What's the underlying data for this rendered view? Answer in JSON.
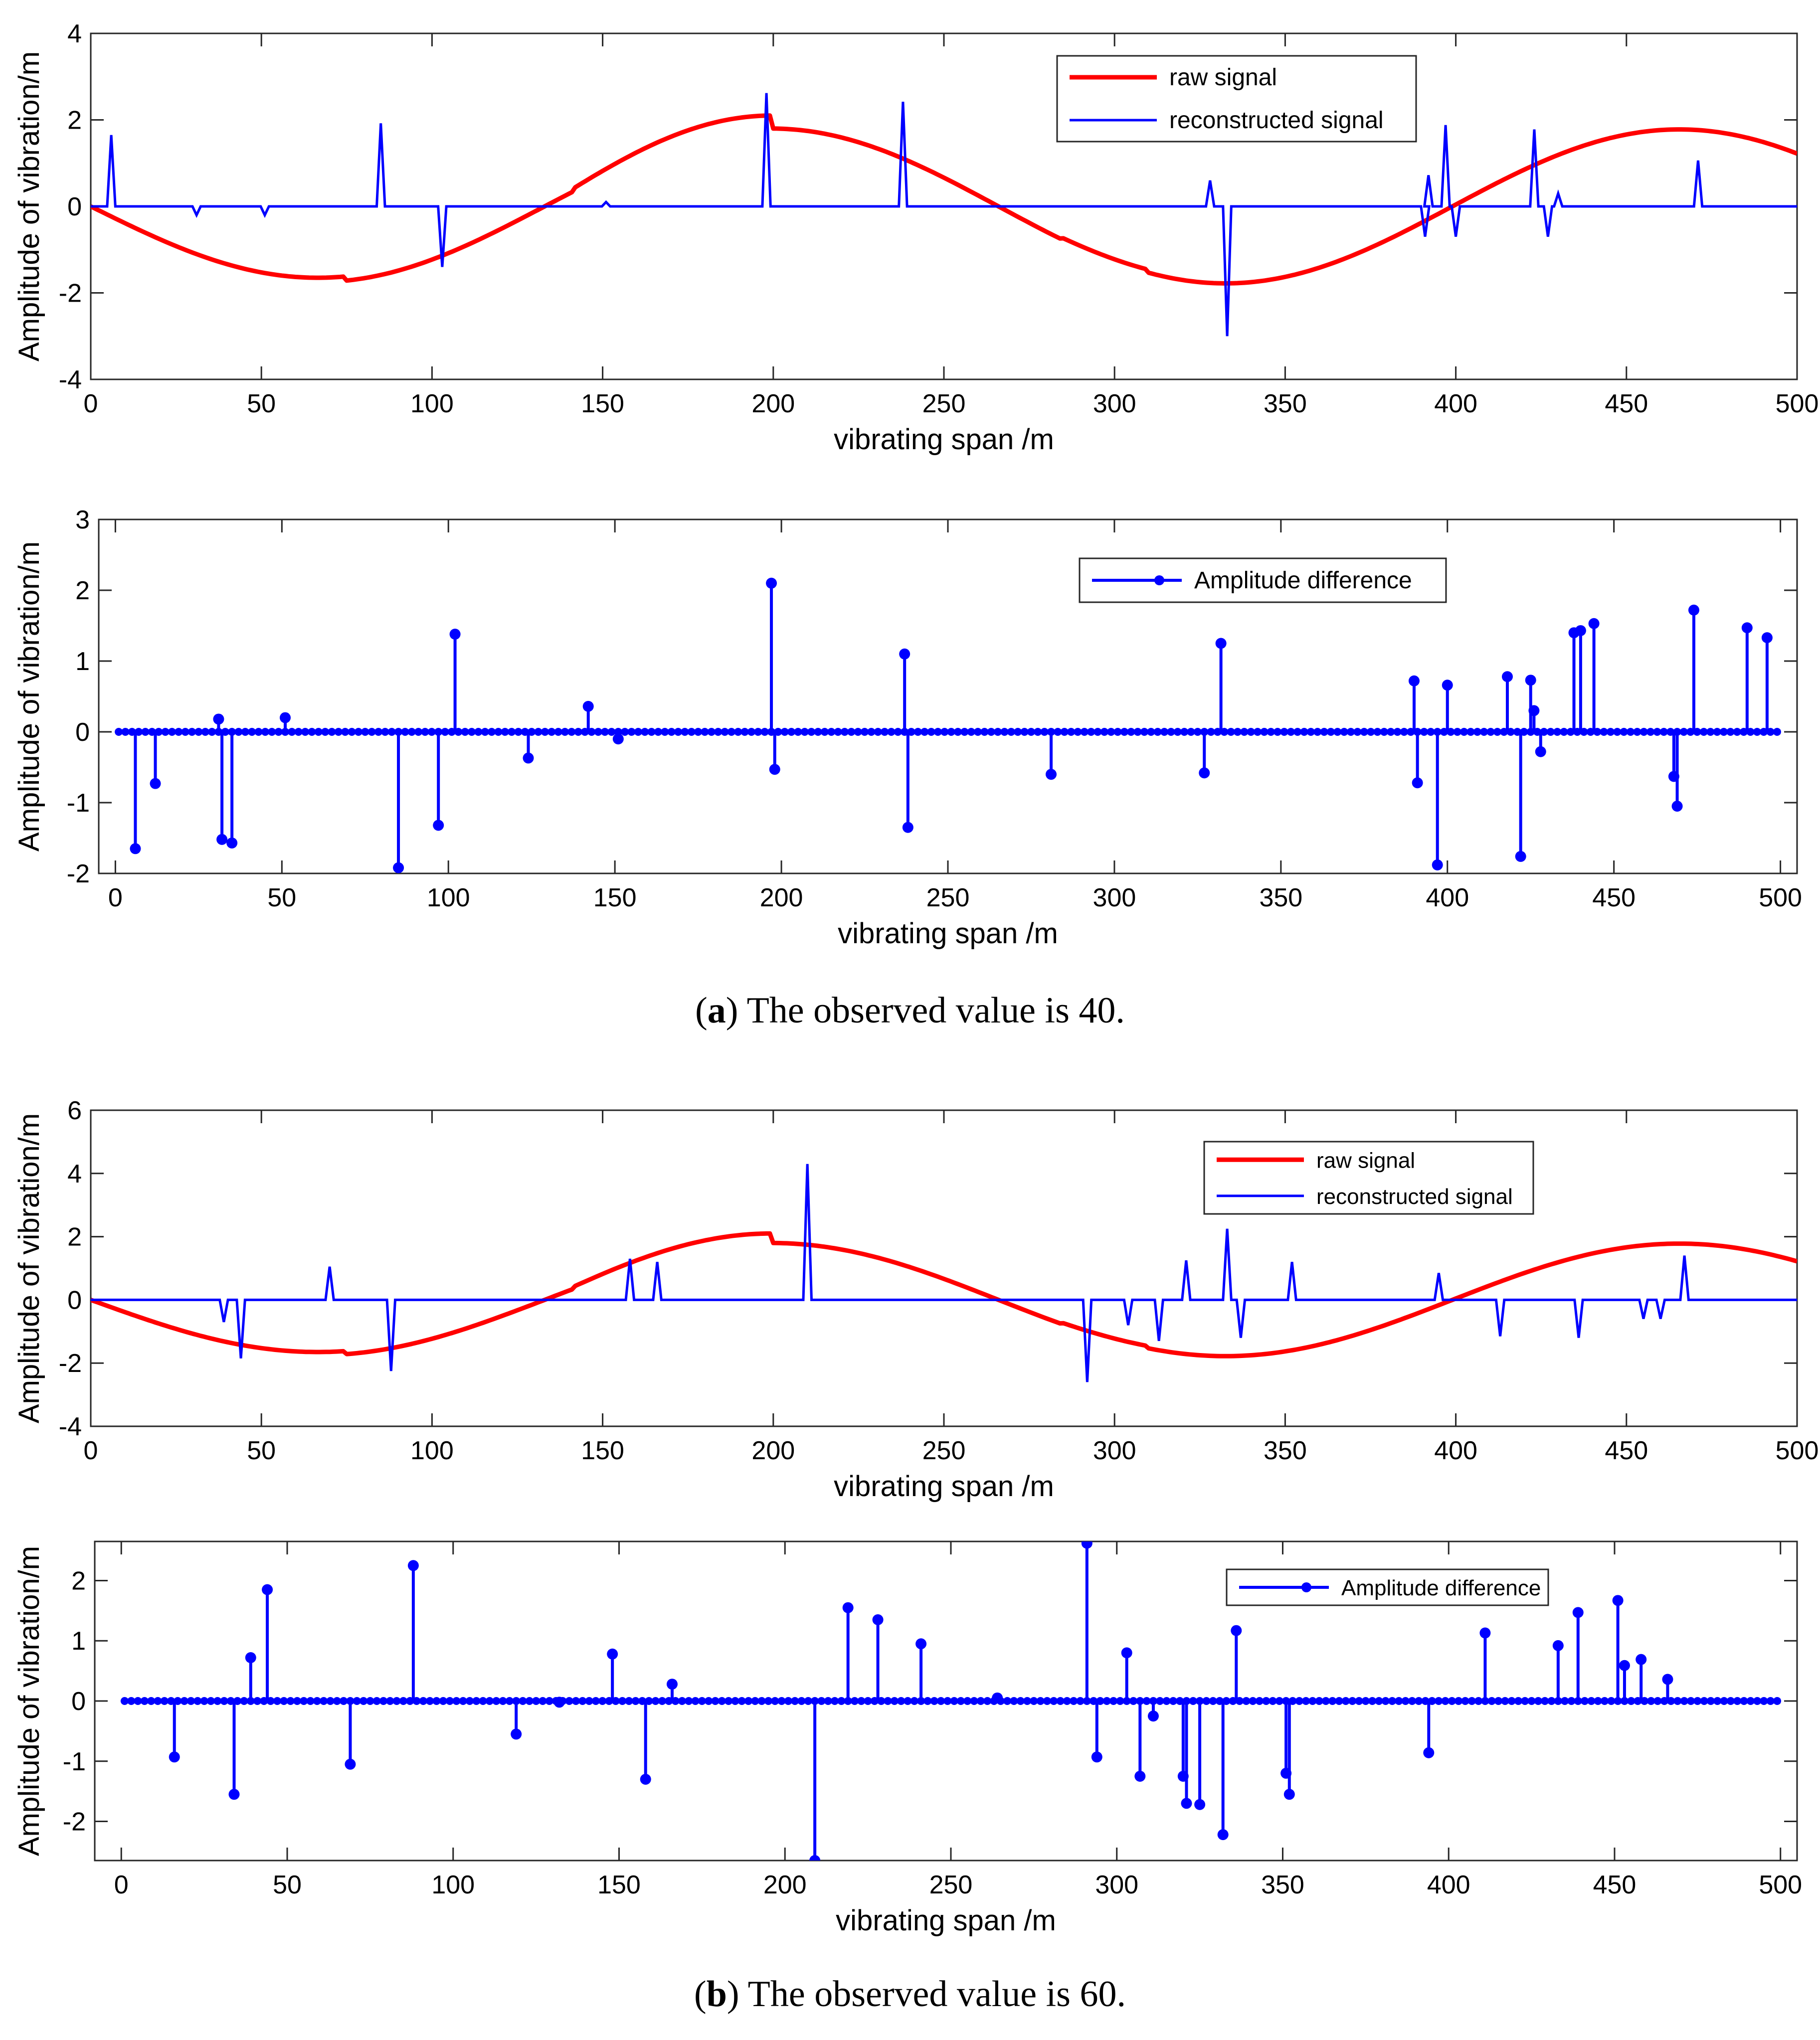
{
  "colors": {
    "raw": "#ff0000",
    "recon": "#0000ff",
    "diff": "#0000ff",
    "axis": "#262626"
  },
  "captions": {
    "a": {
      "letter": "a",
      "text": ") The observed value is 40.",
      "open": "("
    },
    "b": {
      "letter": "b",
      "text": ") The observed value is 60.",
      "open": "("
    }
  },
  "chart_data": [
    {
      "id": "a1",
      "type": "line",
      "title": "",
      "xlabel": "vibrating span /m",
      "ylabel": "Amplitude of vibration/m",
      "xlim": [
        0,
        500
      ],
      "ylim": [
        -4,
        4
      ],
      "xticks": [
        0,
        50,
        100,
        150,
        200,
        250,
        300,
        350,
        400,
        450,
        500
      ],
      "yticks": [
        -4,
        -2,
        0,
        2,
        4
      ],
      "legend": [
        "raw signal",
        "reconstructed signal"
      ],
      "legend_position": "top-right",
      "raw_signal": {
        "name": "raw signal",
        "period": 266,
        "amplitude_sections": [
          [
            0,
            75,
            1.65
          ],
          [
            75,
            142,
            1.75
          ],
          [
            142,
            200,
            2.1
          ],
          [
            200,
            285,
            1.8
          ],
          [
            285,
            310,
            1.7
          ],
          [
            310,
            500,
            1.78
          ]
        ]
      },
      "reconstructed_signal": {
        "name": "reconstructed signal",
        "spikes": [
          [
            6,
            1.65
          ],
          [
            31,
            -0.2
          ],
          [
            51,
            -0.2
          ],
          [
            85,
            1.92
          ],
          [
            103,
            -1.4
          ],
          [
            151,
            0.1
          ],
          [
            198,
            2.62
          ],
          [
            238,
            2.42
          ],
          [
            328,
            0.6
          ],
          [
            333,
            -3.0
          ],
          [
            391,
            -0.7
          ],
          [
            392,
            0.72
          ],
          [
            397,
            1.88
          ],
          [
            400,
            -0.7
          ],
          [
            423,
            1.78
          ],
          [
            427,
            -0.7
          ],
          [
            430,
            0.3
          ],
          [
            471,
            1.06
          ]
        ]
      }
    },
    {
      "id": "a2",
      "type": "stem",
      "title": "",
      "xlabel": "vibrating span /m",
      "ylabel": "Amplitude of vibration/m",
      "xlim": [
        -5,
        505
      ],
      "ylim": [
        -2,
        3
      ],
      "xticks": [
        0,
        50,
        100,
        150,
        200,
        250,
        300,
        350,
        400,
        450,
        500
      ],
      "yticks": [
        -2,
        -1,
        0,
        1,
        2,
        3
      ],
      "legend": [
        "Amplitude difference"
      ],
      "legend_position": "top-right",
      "series": [
        {
          "name": "Amplitude difference",
          "points": [
            [
              6,
              -1.65
            ],
            [
              12,
              -0.73
            ],
            [
              31,
              0.18
            ],
            [
              32,
              -1.52
            ],
            [
              35,
              -1.57
            ],
            [
              51,
              0.2
            ],
            [
              85,
              -1.92
            ],
            [
              97,
              -1.32
            ],
            [
              102,
              1.38
            ],
            [
              124,
              -0.37
            ],
            [
              142,
              0.36
            ],
            [
              151,
              -0.1
            ],
            [
              197,
              2.1
            ],
            [
              198,
              -0.53
            ],
            [
              237,
              1.1
            ],
            [
              238,
              -1.35
            ],
            [
              281,
              -0.6
            ],
            [
              327,
              -0.58
            ],
            [
              332,
              1.25
            ],
            [
              390,
              0.72
            ],
            [
              391,
              -0.72
            ],
            [
              397,
              -1.88
            ],
            [
              400,
              0.66
            ],
            [
              418,
              0.78
            ],
            [
              422,
              -1.76
            ],
            [
              425,
              0.73
            ],
            [
              426,
              0.3
            ],
            [
              428,
              -0.28
            ],
            [
              438,
              1.4
            ],
            [
              440,
              1.43
            ],
            [
              444,
              1.53
            ],
            [
              468,
              -0.63
            ],
            [
              469,
              -1.05
            ],
            [
              474,
              1.72
            ],
            [
              490,
              1.47
            ],
            [
              496,
              1.33
            ]
          ]
        }
      ]
    },
    {
      "id": "b1",
      "type": "line",
      "title": "",
      "xlabel": "vibrating span /m",
      "ylabel": "Amplitude of vibration/m",
      "xlim": [
        0,
        500
      ],
      "ylim": [
        -4,
        6
      ],
      "xticks": [
        0,
        50,
        100,
        150,
        200,
        250,
        300,
        350,
        400,
        450,
        500
      ],
      "yticks": [
        -4,
        -2,
        0,
        2,
        4,
        6
      ],
      "legend": [
        "raw signal",
        "reconstructed signal"
      ],
      "legend_position": "top-right",
      "raw_signal": {
        "name": "raw signal",
        "period": 266,
        "amplitude_sections": [
          [
            0,
            75,
            1.65
          ],
          [
            75,
            142,
            1.75
          ],
          [
            142,
            200,
            2.1
          ],
          [
            200,
            285,
            1.8
          ],
          [
            285,
            310,
            1.7
          ],
          [
            310,
            500,
            1.78
          ]
        ]
      },
      "reconstructed_signal": {
        "name": "reconstructed signal",
        "spikes": [
          [
            39,
            -0.7
          ],
          [
            44,
            -1.85
          ],
          [
            70,
            1.05
          ],
          [
            88,
            -2.25
          ],
          [
            158,
            1.3
          ],
          [
            166,
            1.2
          ],
          [
            210,
            4.3
          ],
          [
            292,
            -2.6
          ],
          [
            304,
            -0.8
          ],
          [
            313,
            -1.3
          ],
          [
            321,
            1.25
          ],
          [
            333,
            2.25
          ],
          [
            337,
            -1.2
          ],
          [
            352,
            1.2
          ],
          [
            395,
            0.85
          ],
          [
            413,
            -1.15
          ],
          [
            436,
            -1.2
          ],
          [
            455,
            -0.6
          ],
          [
            460,
            -0.6
          ],
          [
            467,
            1.4
          ]
        ]
      }
    },
    {
      "id": "b2",
      "type": "stem",
      "title": "",
      "xlabel": "vibrating span /m",
      "ylabel": "Amplitude of vibration/m",
      "xlim": [
        -8,
        505
      ],
      "ylim": [
        -2.65,
        2.65
      ],
      "xticks": [
        0,
        50,
        100,
        150,
        200,
        250,
        300,
        350,
        400,
        450,
        500
      ],
      "yticks": [
        -2,
        -1,
        0,
        1,
        2
      ],
      "legend": [
        "Amplitude difference"
      ],
      "legend_position": "top-right",
      "series": [
        {
          "name": "Amplitude difference",
          "points": [
            [
              16,
              -0.93
            ],
            [
              34,
              -1.55
            ],
            [
              39,
              0.72
            ],
            [
              44,
              1.85
            ],
            [
              69,
              -1.05
            ],
            [
              88,
              2.25
            ],
            [
              119,
              -0.55
            ],
            [
              132,
              -0.02
            ],
            [
              148,
              0.78
            ],
            [
              158,
              -1.3
            ],
            [
              166,
              0.28
            ],
            [
              209,
              -2.65
            ],
            [
              219,
              1.55
            ],
            [
              228,
              1.35
            ],
            [
              241,
              0.95
            ],
            [
              264,
              0.05
            ],
            [
              291,
              2.62
            ],
            [
              294,
              -0.93
            ],
            [
              303,
              0.8
            ],
            [
              307,
              -1.25
            ],
            [
              311,
              -0.25
            ],
            [
              320,
              -1.25
            ],
            [
              321,
              -1.7
            ],
            [
              325,
              -1.72
            ],
            [
              332,
              -2.22
            ],
            [
              336,
              1.17
            ],
            [
              351,
              -1.2
            ],
            [
              352,
              -1.55
            ],
            [
              394,
              -0.86
            ],
            [
              411,
              1.13
            ],
            [
              433,
              0.92
            ],
            [
              439,
              1.47
            ],
            [
              451,
              1.67
            ],
            [
              453,
              0.59
            ],
            [
              458,
              0.69
            ],
            [
              466,
              0.36
            ]
          ]
        }
      ]
    }
  ]
}
